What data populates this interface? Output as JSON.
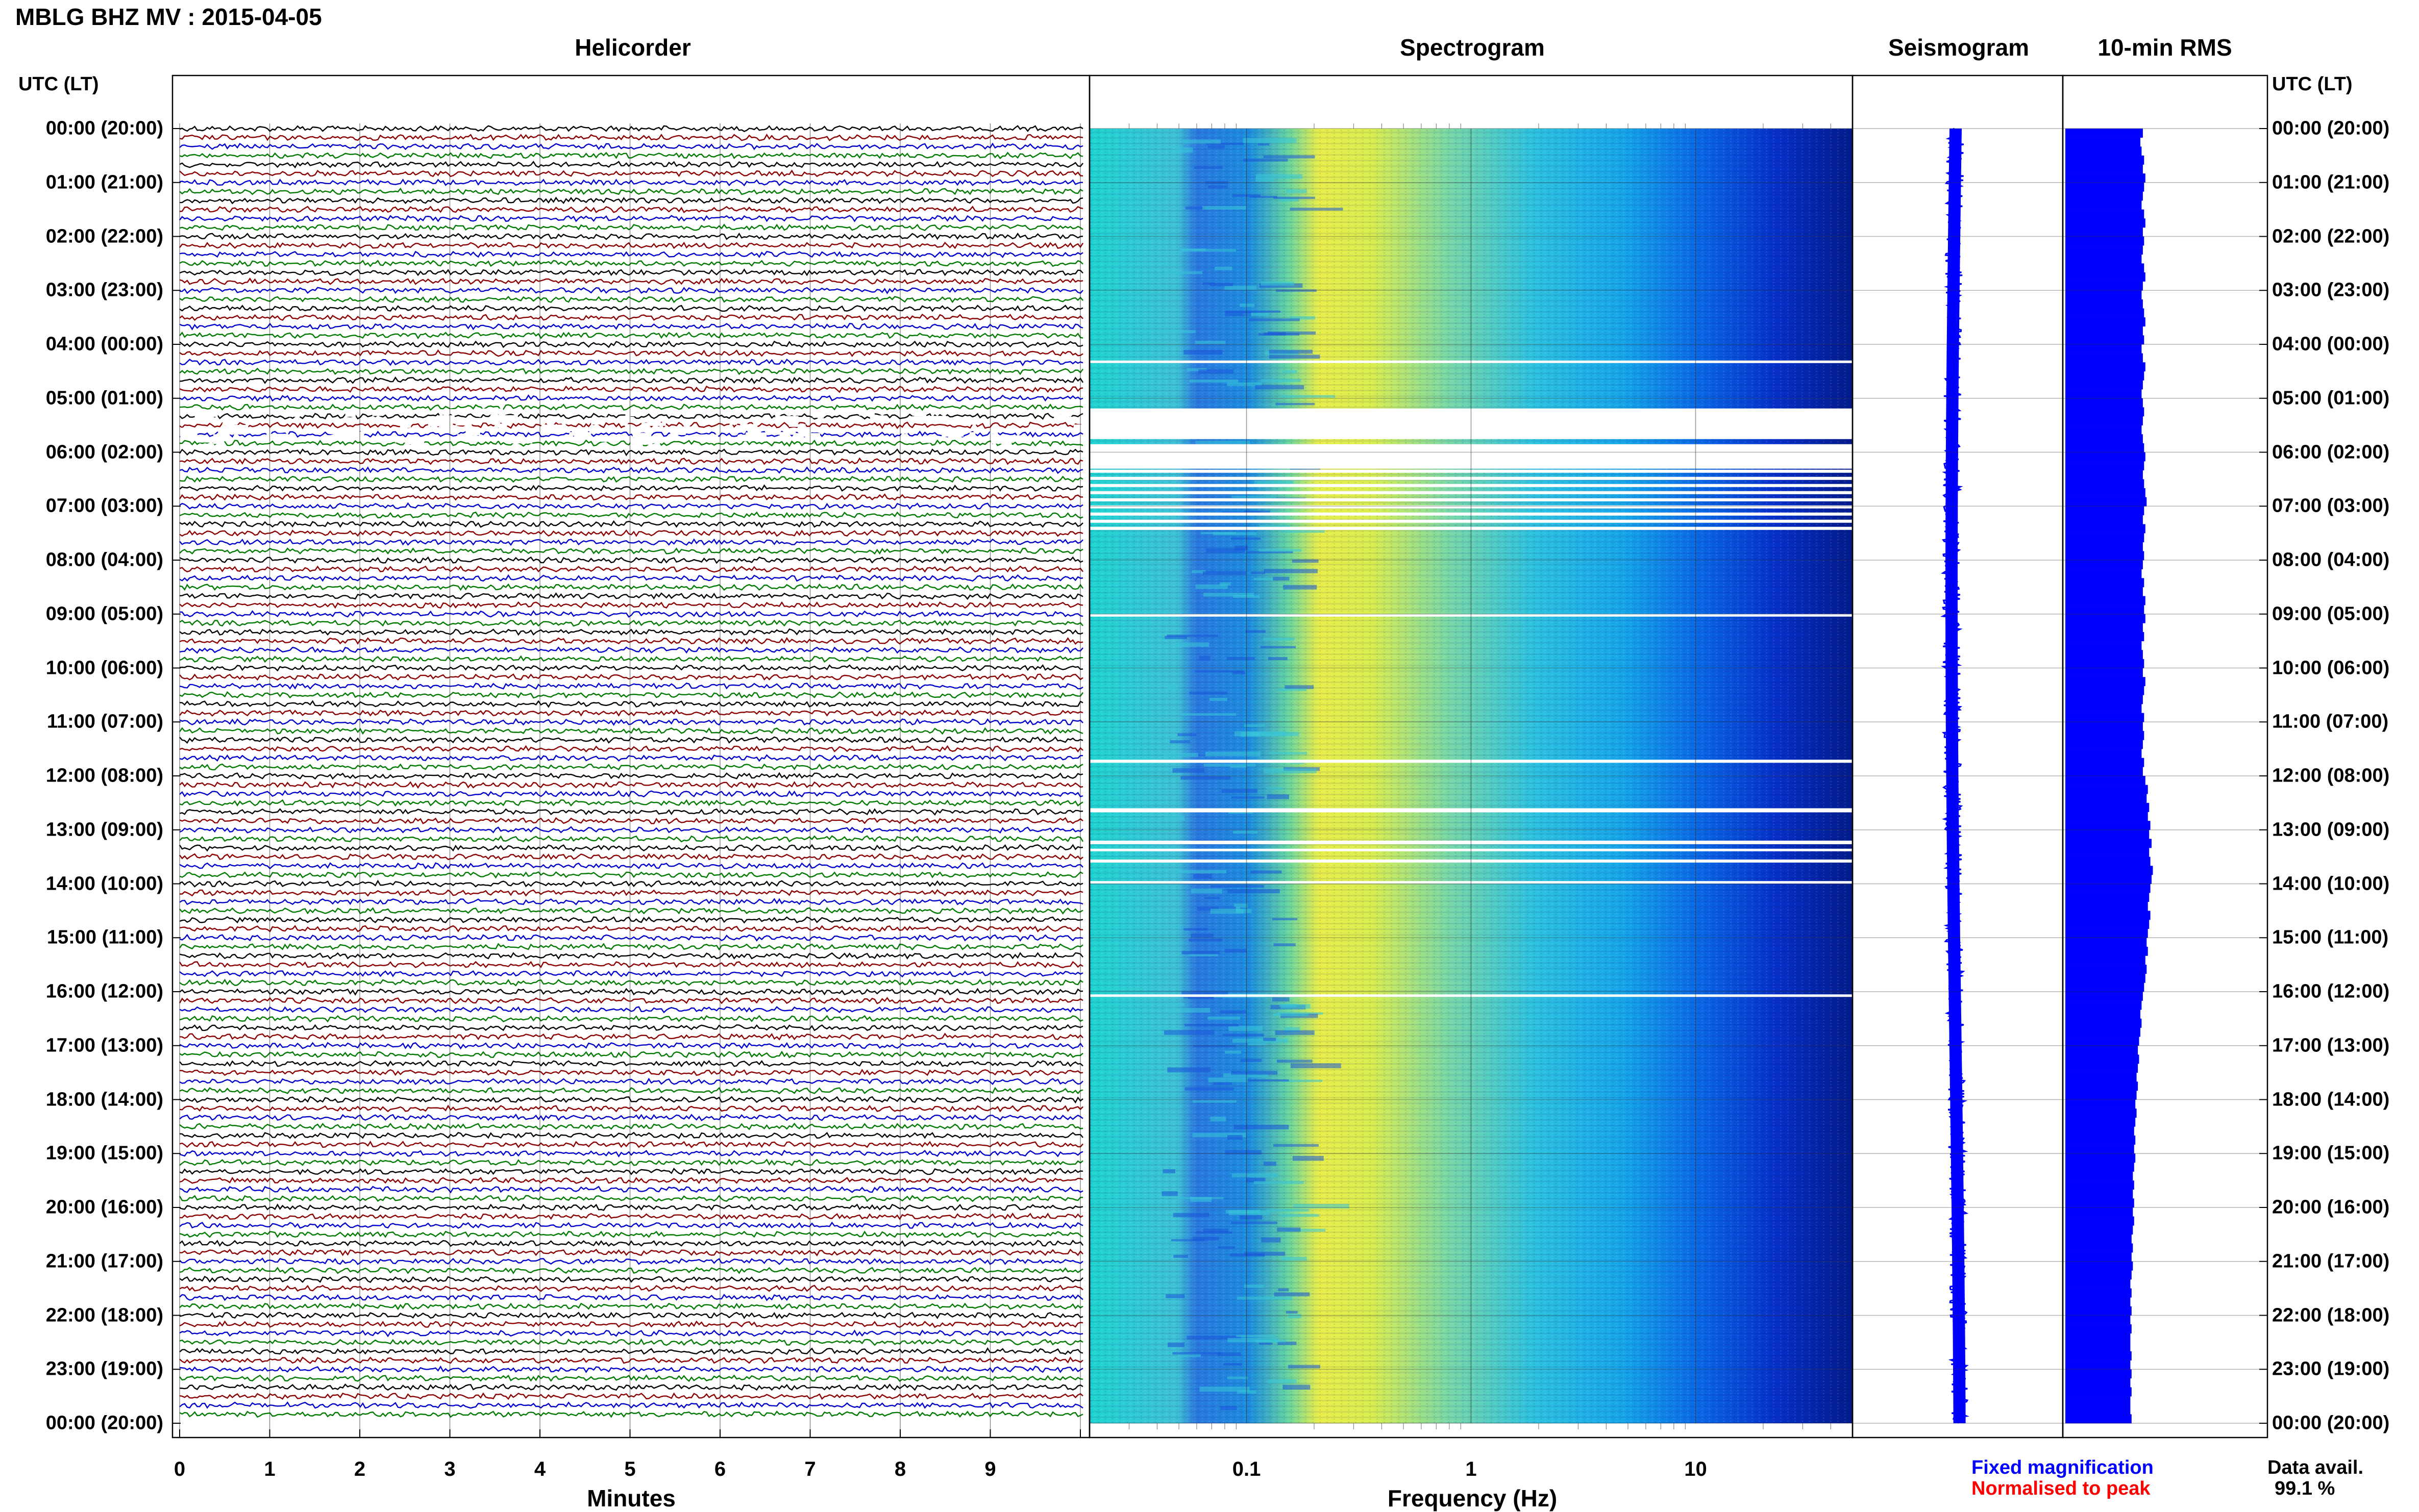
{
  "title": "MBLG BHZ MV : 2015-04-05",
  "panels": {
    "helicorder": "Helicorder",
    "spectrogram": "Spectrogram",
    "seismogram": "Seismogram",
    "rms": "10-min RMS"
  },
  "axis_left_title": "UTC (LT)",
  "axis_right_title": "UTC (LT)",
  "time_labels": [
    "00:00 (20:00)",
    "01:00 (21:00)",
    "02:00 (22:00)",
    "03:00 (23:00)",
    "04:00 (00:00)",
    "05:00 (01:00)",
    "06:00 (02:00)",
    "07:00 (03:00)",
    "08:00 (04:00)",
    "09:00 (05:00)",
    "10:00 (06:00)",
    "11:00 (07:00)",
    "12:00 (08:00)",
    "13:00 (09:00)",
    "14:00 (10:00)",
    "15:00 (11:00)",
    "16:00 (12:00)",
    "17:00 (13:00)",
    "18:00 (14:00)",
    "19:00 (15:00)",
    "20:00 (16:00)",
    "21:00 (17:00)",
    "22:00 (18:00)",
    "23:00 (19:00)",
    "00:00 (20:00)"
  ],
  "helicorder_xlabel": "Minutes",
  "spectrogram_xlabel": "Frequency (Hz)",
  "legend": {
    "fixed": "Fixed magnification",
    "normalised": "Normalised to peak",
    "fixed_color": "#0000ff",
    "normalised_color": "#ff0000"
  },
  "data_availability": {
    "label": "Data avail.",
    "value": "99.1 %"
  },
  "colors": {
    "trace_colors": [
      "#000000",
      "#8b0000",
      "#0000cd",
      "#007a00"
    ],
    "seismogram_color": "#0000ff",
    "rms_color": "#0000ff"
  },
  "chart_data": [
    {
      "type": "line",
      "name": "helicorder",
      "title": "Helicorder",
      "xlabel": "Minutes",
      "x_ticks": [
        0,
        1,
        2,
        3,
        4,
        5,
        6,
        7,
        8,
        9
      ],
      "xlim": [
        0,
        10
      ],
      "rows_per_hour": 6,
      "trace_color_cycle": [
        "black",
        "dark red",
        "blue",
        "green"
      ],
      "gap_window": [
        "05:00",
        "07:00"
      ]
    },
    {
      "type": "heatmap",
      "name": "spectrogram",
      "title": "Spectrogram",
      "xlabel": "Frequency (Hz)",
      "x_scale": "log",
      "x_ticks": [
        "0.1",
        "1",
        "10"
      ],
      "xlim": [
        0.02,
        50
      ],
      "peak_band_hz": [
        0.2,
        0.35
      ],
      "gap_window": [
        "05:00",
        "07:00"
      ]
    },
    {
      "type": "line",
      "name": "seismogram",
      "title": "Seismogram",
      "gap_window": [
        "05:00",
        "07:00"
      ]
    },
    {
      "type": "bar",
      "name": "rms",
      "title": "10-min RMS",
      "orientation": "horizontal",
      "bins_per_hour": 6,
      "values": [
        0.62,
        0.6,
        0.61,
        0.63,
        0.62,
        0.64,
        0.63,
        0.62,
        0.61,
        0.63,
        0.64,
        0.62,
        0.63,
        0.62,
        0.61,
        0.63,
        0.64,
        0.62,
        0.61,
        0.62,
        0.63,
        0.64,
        0.62,
        0.63,
        0.61,
        0.62,
        0.64,
        0.63,
        0.62,
        0.61,
        0.62,
        0.63,
        0.62,
        0.61,
        0.62,
        0.63,
        0.64,
        0.63,
        0.62,
        0.63,
        0.64,
        0.65,
        0.63,
        0.62,
        0.64,
        0.63,
        0.62,
        0.63,
        0.62,
        0.61,
        0.63,
        0.62,
        0.64,
        0.63,
        0.64,
        0.62,
        0.63,
        0.61,
        0.62,
        0.63,
        0.62,
        0.64,
        0.63,
        0.62,
        0.61,
        0.63,
        0.62,
        0.63,
        0.62,
        0.61,
        0.63,
        0.62,
        0.64,
        0.66,
        0.65,
        0.67,
        0.66,
        0.68,
        0.67,
        0.69,
        0.67,
        0.68,
        0.7,
        0.69,
        0.68,
        0.67,
        0.66,
        0.68,
        0.67,
        0.66,
        0.65,
        0.66,
        0.64,
        0.65,
        0.64,
        0.63,
        0.62,
        0.61,
        0.6,
        0.61,
        0.6,
        0.59,
        0.58,
        0.59,
        0.58,
        0.57,
        0.58,
        0.57,
        0.56,
        0.57,
        0.56,
        0.55,
        0.56,
        0.55,
        0.56,
        0.55,
        0.54,
        0.55,
        0.54,
        0.55,
        0.54,
        0.55,
        0.54,
        0.53,
        0.54,
        0.53,
        0.54,
        0.53,
        0.52,
        0.53,
        0.52,
        0.53,
        0.52,
        0.53,
        0.52,
        0.52,
        0.53,
        0.52,
        0.53,
        0.52,
        0.53,
        0.52,
        0.52,
        0.53
      ]
    }
  ]
}
